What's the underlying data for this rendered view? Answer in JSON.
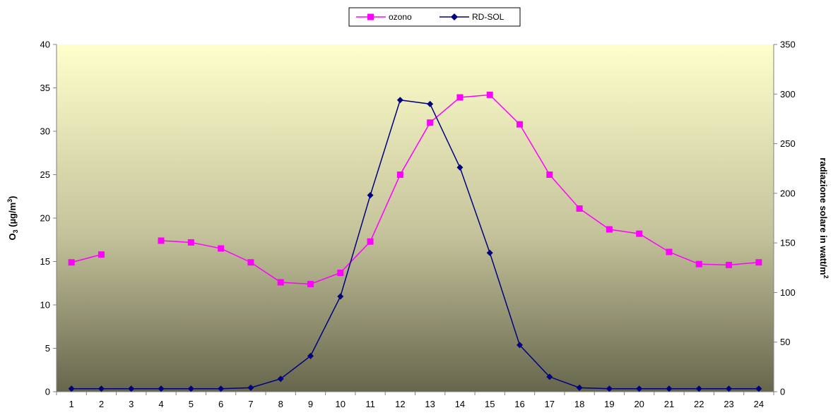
{
  "chart_data": {
    "type": "line",
    "x": [
      1,
      2,
      3,
      4,
      5,
      6,
      7,
      8,
      9,
      10,
      11,
      12,
      13,
      14,
      15,
      16,
      17,
      18,
      19,
      20,
      21,
      22,
      23,
      24
    ],
    "y_left": {
      "label_main": "O",
      "label_sub": "3",
      "label_unit_pre": " (µg/m",
      "label_sup": "3",
      "label_unit_post": ")",
      "lim": [
        0,
        40
      ],
      "ticks": [
        0,
        5,
        10,
        15,
        20,
        25,
        30,
        35,
        40
      ]
    },
    "y_right": {
      "label_main": "radiazione solare in watt/m",
      "label_sup": "2",
      "lim": [
        0,
        350
      ],
      "ticks": [
        0,
        50,
        100,
        150,
        200,
        250,
        300,
        350
      ]
    },
    "series": [
      {
        "name": "ozono",
        "axis": "left",
        "color": "#ff00ff",
        "marker": "square",
        "values": [
          14.9,
          15.8,
          null,
          17.4,
          17.2,
          16.5,
          14.9,
          12.6,
          12.4,
          13.7,
          17.3,
          25.0,
          31.0,
          33.9,
          34.2,
          30.8,
          25.0,
          21.1,
          18.7,
          18.2,
          16.1,
          14.7,
          14.6,
          14.9
        ]
      },
      {
        "name": "RD-SOL",
        "axis": "right",
        "color": "#000080",
        "marker": "diamond",
        "values": [
          3,
          3,
          3,
          3,
          3,
          3,
          4,
          13,
          36,
          96,
          198,
          294,
          290,
          226,
          140,
          47,
          15,
          4,
          3,
          3,
          3,
          3,
          3,
          3
        ]
      }
    ],
    "legend_position": "top-center",
    "grid": false,
    "background_gradient": [
      "#ffffcc",
      "#66664d"
    ]
  }
}
